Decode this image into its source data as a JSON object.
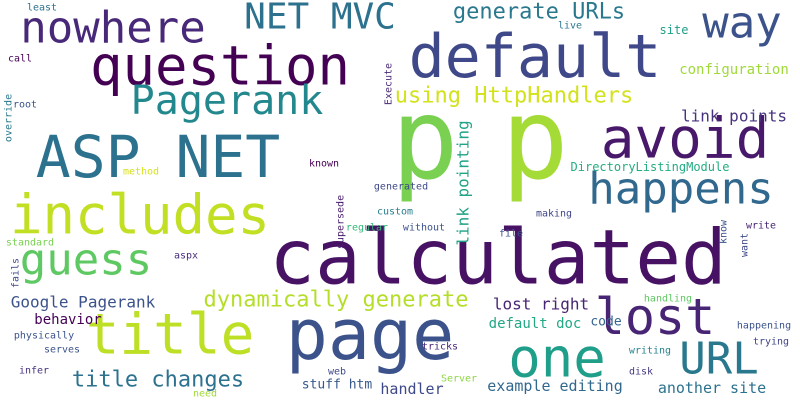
{
  "words": [
    {
      "text": "p",
      "color": "#7ad151"
    },
    {
      "text": "p",
      "color": "#a5db36"
    },
    {
      "text": "calculated",
      "color": "#471164"
    },
    {
      "text": "page",
      "color": "#3b528b"
    },
    {
      "text": "ASP NET",
      "color": "#2c728e"
    },
    {
      "text": "includes",
      "color": "#c2df23"
    },
    {
      "text": "default",
      "color": "#3f4889"
    },
    {
      "text": "question",
      "color": "#440154"
    },
    {
      "text": "avoid",
      "color": "#48186a"
    },
    {
      "text": "happens",
      "color": "#31688e"
    },
    {
      "text": "title",
      "color": "#bddf26"
    },
    {
      "text": "one",
      "color": "#1f9e89"
    },
    {
      "text": "lost",
      "color": "#482475"
    },
    {
      "text": "URL",
      "color": "#2a788e"
    },
    {
      "text": "guess",
      "color": "#5ec962"
    },
    {
      "text": "nowhere",
      "color": "#482878"
    },
    {
      "text": "way",
      "color": "#3b528b"
    },
    {
      "text": "Pagerank",
      "color": "#23888e"
    },
    {
      "text": "NET MVC",
      "color": "#2c728e"
    },
    {
      "text": "generate URLs",
      "color": "#2a788e"
    },
    {
      "text": "using HttpHandlers",
      "color": "#d2e21b"
    },
    {
      "text": "dynamically generate",
      "color": "#b5de2b"
    },
    {
      "text": "title changes",
      "color": "#2c728e"
    },
    {
      "text": "Google Pagerank",
      "color": "#3b528b"
    },
    {
      "text": "link pointing",
      "color": "#20a386"
    },
    {
      "text": "link points",
      "color": "#46327e"
    },
    {
      "text": "configuration",
      "color": "#a0da39"
    },
    {
      "text": "lost right",
      "color": "#482475"
    },
    {
      "text": "default doc",
      "color": "#22a884"
    },
    {
      "text": "example editing",
      "color": "#31688e"
    },
    {
      "text": "another site",
      "color": "#2c728e"
    },
    {
      "text": "behavior",
      "color": "#440154"
    },
    {
      "text": "stuff htm",
      "color": "#38588c"
    },
    {
      "text": "handler",
      "color": "#3e4989"
    },
    {
      "text": "code",
      "color": "#32648e"
    },
    {
      "text": "site",
      "color": "#1f9e89"
    },
    {
      "text": "DirectoryListingModule",
      "color": "#25ac82"
    },
    {
      "text": "known",
      "color": "#440154"
    },
    {
      "text": "generated",
      "color": "#3e4989"
    },
    {
      "text": "custom",
      "color": "#277f8e"
    },
    {
      "text": "making",
      "color": "#404688"
    },
    {
      "text": "file",
      "color": "#3b528b"
    },
    {
      "text": "without",
      "color": "#3b528b"
    },
    {
      "text": "regular",
      "color": "#35b779"
    },
    {
      "text": "supersede",
      "color": "#481b6d"
    },
    {
      "text": "write",
      "color": "#482475"
    },
    {
      "text": "want",
      "color": "#3e4989"
    },
    {
      "text": "know",
      "color": "#3b528b"
    },
    {
      "text": "aspx",
      "color": "#472d7b"
    },
    {
      "text": "handling",
      "color": "#5ec962"
    },
    {
      "text": "happening",
      "color": "#3b528b"
    },
    {
      "text": "trying",
      "color": "#414487"
    },
    {
      "text": "writing",
      "color": "#26828e"
    },
    {
      "text": "disk",
      "color": "#443983"
    },
    {
      "text": "tricks",
      "color": "#482878"
    },
    {
      "text": "web",
      "color": "#3e4989"
    },
    {
      "text": "Server",
      "color": "#8fd744"
    },
    {
      "text": "need",
      "color": "#a0da39"
    },
    {
      "text": "infer",
      "color": "#46327e"
    },
    {
      "text": "serves",
      "color": "#3b528b"
    },
    {
      "text": "physically",
      "color": "#3b528b"
    },
    {
      "text": "fails",
      "color": "#3f4889"
    },
    {
      "text": "standard",
      "color": "#7ad151"
    },
    {
      "text": "method",
      "color": "#d8e219"
    },
    {
      "text": "override",
      "color": "#2a788e"
    },
    {
      "text": "root",
      "color": "#3b528b"
    },
    {
      "text": "call",
      "color": "#440154"
    },
    {
      "text": "least",
      "color": "#2c728e"
    },
    {
      "text": "Execute",
      "color": "#482878"
    },
    {
      "text": "live",
      "color": "#2a788e"
    }
  ]
}
